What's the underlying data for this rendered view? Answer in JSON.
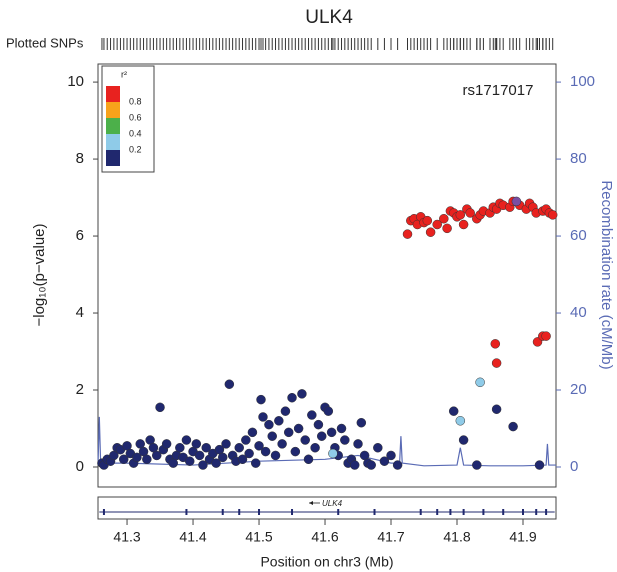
{
  "chart_data": {
    "type": "scatter",
    "title": "ULK4",
    "rug_label": "Plotted SNPs",
    "xlabel": "Position on chr3 (Mb)",
    "ylabel": "−log₁₀(p−value)",
    "y2label": "Recombination rate (cM/Mb)",
    "annotation": "rs1717017",
    "xlim": [
      41.256,
      41.95
    ],
    "xticks": [
      41.3,
      41.4,
      41.5,
      41.6,
      41.7,
      41.8,
      41.9
    ],
    "ylim": [
      -0.52,
      10.47
    ],
    "yticks": [
      0,
      2,
      4,
      6,
      8,
      10
    ],
    "y2lim": [
      -5.2,
      104.7
    ],
    "y2ticks": [
      0,
      20,
      40,
      60,
      80,
      100
    ],
    "legend": {
      "title": "r²",
      "colors": [
        "#e8221f",
        "#f7a21b",
        "#4cb04a",
        "#8fcbe8",
        "#20286e"
      ],
      "ticks": [
        0.8,
        0.6,
        0.4,
        0.2
      ]
    },
    "series": [
      {
        "color": "#20286e",
        "x": [
          41.262,
          41.265,
          41.27,
          41.275,
          41.28,
          41.285,
          41.29,
          41.295,
          41.3,
          41.305,
          41.31,
          41.315,
          41.32,
          41.325,
          41.33,
          41.335,
          41.34,
          41.345,
          41.35,
          41.355,
          41.36,
          41.365,
          41.37,
          41.375,
          41.38,
          41.385,
          41.39,
          41.395,
          41.4,
          41.405,
          41.41,
          41.415,
          41.42,
          41.425,
          41.43,
          41.435,
          41.44,
          41.445,
          41.45,
          41.455,
          41.46,
          41.465,
          41.47,
          41.475,
          41.48,
          41.485,
          41.49,
          41.495,
          41.5,
          41.503,
          41.506,
          41.51,
          41.515,
          41.52,
          41.525,
          41.53,
          41.535,
          41.54,
          41.545,
          41.55,
          41.555,
          41.56,
          41.565,
          41.57,
          41.575,
          41.58,
          41.585,
          41.59,
          41.595,
          41.6,
          41.605,
          41.61,
          41.615,
          41.62,
          41.625,
          41.63,
          41.635,
          41.64,
          41.645,
          41.65,
          41.655,
          41.66,
          41.665,
          41.67,
          41.68,
          41.69,
          41.7,
          41.71,
          41.795,
          41.81,
          41.83,
          41.86,
          41.885,
          41.925
        ],
        "values": [
          0.1,
          0.05,
          0.2,
          0.15,
          0.3,
          0.5,
          0.45,
          0.2,
          0.55,
          0.35,
          0.1,
          0.25,
          0.6,
          0.4,
          0.2,
          0.7,
          0.5,
          0.3,
          1.55,
          0.45,
          0.6,
          0.2,
          0.1,
          0.3,
          0.5,
          0.25,
          0.7,
          0.15,
          0.4,
          0.6,
          0.3,
          0.05,
          0.5,
          0.2,
          0.35,
          0.1,
          0.45,
          0.25,
          0.6,
          2.15,
          0.3,
          0.15,
          0.5,
          0.2,
          0.7,
          0.35,
          0.9,
          0.1,
          0.55,
          1.75,
          1.3,
          0.4,
          1.1,
          0.8,
          0.3,
          1.2,
          0.6,
          1.45,
          0.9,
          1.8,
          0.4,
          1.0,
          1.9,
          0.7,
          0.2,
          1.35,
          0.5,
          1.1,
          0.8,
          1.55,
          1.45,
          0.9,
          0.5,
          0.3,
          1.0,
          0.7,
          0.1,
          0.2,
          0.05,
          0.6,
          1.15,
          0.3,
          0.1,
          0.05,
          0.5,
          0.15,
          0.3,
          0.05,
          1.45,
          0.7,
          0.05,
          1.5,
          1.05,
          0.05
        ]
      },
      {
        "color": "#8fcbe8",
        "x": [
          41.612,
          41.805,
          41.835
        ],
        "values": [
          0.35,
          1.2,
          2.2
        ]
      },
      {
        "color": "#e8221f",
        "x": [
          41.725,
          41.73,
          41.735,
          41.74,
          41.745,
          41.75,
          41.755,
          41.76,
          41.77,
          41.78,
          41.785,
          41.79,
          41.795,
          41.8,
          41.805,
          41.81,
          41.815,
          41.82,
          41.83,
          41.835,
          41.84,
          41.85,
          41.855,
          41.86,
          41.865,
          41.87,
          41.88,
          41.885,
          41.895,
          41.905,
          41.91,
          41.915,
          41.92,
          41.93,
          41.935,
          41.94,
          41.945,
          41.858,
          41.86,
          41.922,
          41.93,
          41.935
        ],
        "values": [
          6.05,
          6.4,
          6.45,
          6.3,
          6.5,
          6.35,
          6.4,
          6.1,
          6.3,
          6.45,
          6.2,
          6.65,
          6.6,
          6.5,
          6.55,
          6.3,
          6.7,
          6.6,
          6.45,
          6.55,
          6.65,
          6.6,
          6.75,
          6.7,
          6.85,
          6.8,
          6.75,
          6.9,
          6.8,
          6.7,
          6.85,
          6.75,
          6.6,
          6.65,
          6.7,
          6.6,
          6.55,
          3.2,
          2.7,
          3.25,
          3.4,
          3.4
        ]
      },
      {
        "color": "#7b4ea3",
        "x": [
          41.89
        ],
        "values": [
          6.9
        ]
      }
    ],
    "recombination": {
      "color": "#5a6bb5",
      "axis": "y2",
      "x": [
        41.256,
        41.258,
        41.26,
        41.3,
        41.4,
        41.5,
        41.6,
        41.65,
        41.7,
        41.713,
        41.715,
        41.717,
        41.75,
        41.8,
        41.805,
        41.81,
        41.85,
        41.9,
        41.935,
        41.937,
        41.939,
        41.95
      ],
      "values": [
        0.5,
        13,
        1,
        1,
        0.5,
        1.5,
        2,
        3,
        1,
        1,
        8,
        1,
        0.3,
        0.5,
        5,
        0.5,
        0.3,
        0.3,
        0.5,
        6,
        0.5,
        0.5
      ]
    },
    "gene": {
      "name": "ULK4",
      "start": 41.258,
      "end": 41.948,
      "exons": [
        41.265,
        41.39,
        41.445,
        41.47,
        41.5,
        41.55,
        41.62,
        41.675,
        41.745,
        41.77,
        41.79,
        41.81,
        41.84,
        41.87,
        41.9,
        41.92,
        41.935
      ]
    }
  }
}
